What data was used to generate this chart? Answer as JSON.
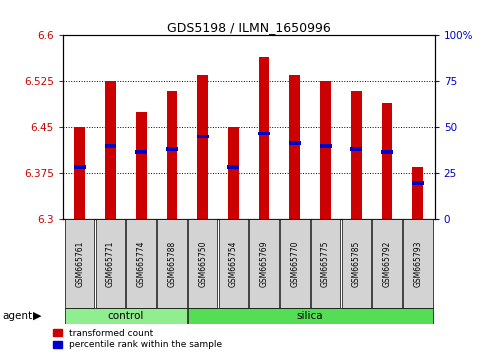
{
  "title": "GDS5198 / ILMN_1650996",
  "samples": [
    "GSM665761",
    "GSM665771",
    "GSM665774",
    "GSM665788",
    "GSM665750",
    "GSM665754",
    "GSM665769",
    "GSM665770",
    "GSM665775",
    "GSM665785",
    "GSM665792",
    "GSM665793"
  ],
  "groups": [
    "control",
    "control",
    "control",
    "control",
    "silica",
    "silica",
    "silica",
    "silica",
    "silica",
    "silica",
    "silica",
    "silica"
  ],
  "transformed_count_top": [
    6.45,
    6.525,
    6.475,
    6.51,
    6.535,
    6.45,
    6.565,
    6.535,
    6.525,
    6.51,
    6.49,
    6.385
  ],
  "transformed_count_bottom": [
    6.3,
    6.3,
    6.3,
    6.3,
    6.3,
    6.3,
    6.3,
    6.3,
    6.3,
    6.3,
    6.3,
    6.3
  ],
  "percentile_values": [
    6.385,
    6.42,
    6.41,
    6.415,
    6.435,
    6.385,
    6.44,
    6.425,
    6.42,
    6.415,
    6.41,
    6.36
  ],
  "ylim": [
    6.3,
    6.6
  ],
  "yticks_left": [
    6.3,
    6.375,
    6.45,
    6.525,
    6.6
  ],
  "yticks_right": [
    0,
    25,
    50,
    75,
    100
  ],
  "ytick_labels_right": [
    "0",
    "25",
    "50",
    "75",
    "100%"
  ],
  "bar_color": "#cc0000",
  "percentile_color": "#0000cc",
  "control_color": "#90ee90",
  "silica_color": "#55dd55",
  "bar_width": 0.35,
  "agent_label": "agent",
  "group_control_label": "control",
  "group_silica_label": "silica",
  "legend_bar_label": "transformed count",
  "legend_pct_label": "percentile rank within the sample",
  "grid_color": "black",
  "background_color": "#ffffff",
  "plot_bg_color": "#ffffff",
  "tick_label_color_left": "#cc0000",
  "tick_label_color_right": "#0000cc",
  "n_control": 4,
  "n_silica": 8
}
